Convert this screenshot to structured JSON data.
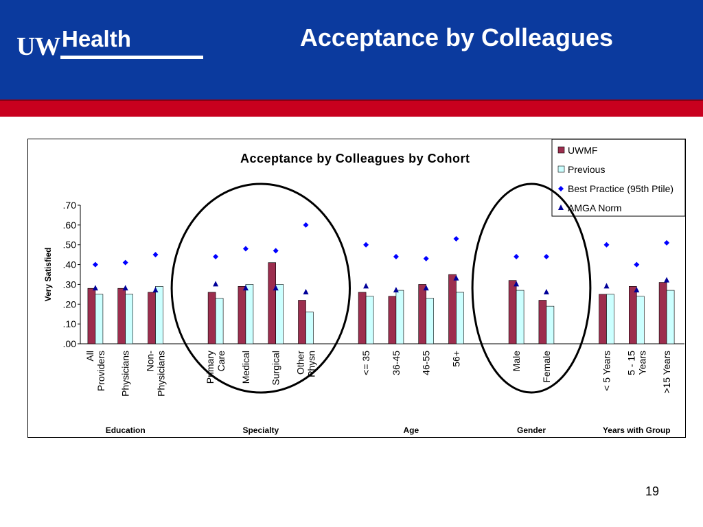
{
  "slide": {
    "title": "Acceptance by Colleagues",
    "page_number": "19",
    "logo_uw": "UW",
    "logo_health": "Health"
  },
  "colors": {
    "header_blue": "#0b3a9e",
    "header_red": "#c8001e",
    "uwmf": "#9c2e4e",
    "previous": "#ccffff",
    "best_practice": "#0000ff",
    "amga_norm": "#000099",
    "highlight_ellipse": "#000000"
  },
  "chart_data": {
    "type": "bar",
    "title": "Acceptance by Colleagues by Cohort",
    "ylabel": "Very Satisfied",
    "ylim": [
      0,
      0.7
    ],
    "yticks": [
      ".00",
      ".10",
      ".20",
      ".30",
      ".40",
      ".50",
      ".60",
      ".70"
    ],
    "legend_position": "top-right",
    "categories": [
      "All Providers",
      "Physicians",
      "Non-Physicians",
      "Primary Care",
      "Medical",
      "Surgical",
      "Other Physn",
      "<= 35",
      "36-45",
      "46-55",
      "56+",
      "Male",
      "Female",
      "< 5 Years",
      "5 - 15 Years",
      ">15 Years"
    ],
    "category_lines": [
      [
        "All",
        "Providers"
      ],
      [
        "Physicians"
      ],
      [
        "Non-",
        "Physicians"
      ],
      [
        "Primary",
        "Care"
      ],
      [
        "Medical"
      ],
      [
        "Surgical"
      ],
      [
        "Other",
        "Physn"
      ],
      [
        "<= 35"
      ],
      [
        "36-45"
      ],
      [
        "46-55"
      ],
      [
        "56+"
      ],
      [
        "Male"
      ],
      [
        "Female"
      ],
      [
        "< 5 Years"
      ],
      [
        "5 - 15",
        "Years"
      ],
      [
        ">15 Years"
      ]
    ],
    "groups": [
      {
        "label": "Education",
        "start": 0,
        "count": 3
      },
      {
        "label": "Specialty",
        "start": 3,
        "count": 4
      },
      {
        "label": "Age",
        "start": 7,
        "count": 4
      },
      {
        "label": "Gender",
        "start": 11,
        "count": 2
      },
      {
        "label": "Years with Group",
        "start": 13,
        "count": 3
      }
    ],
    "series": [
      {
        "name": "UWMF",
        "type": "bar",
        "values": [
          0.28,
          0.28,
          0.26,
          0.26,
          0.29,
          0.41,
          0.22,
          0.26,
          0.24,
          0.3,
          0.35,
          0.32,
          0.22,
          0.25,
          0.29,
          0.31
        ]
      },
      {
        "name": "Previous",
        "type": "bar",
        "values": [
          0.25,
          0.25,
          0.29,
          0.23,
          0.3,
          0.3,
          0.16,
          0.24,
          0.27,
          0.23,
          0.26,
          0.27,
          0.19,
          0.25,
          0.24,
          0.27
        ]
      },
      {
        "name": "Best Practice (95th Ptile)",
        "type": "marker-diamond",
        "values": [
          0.4,
          0.41,
          0.45,
          0.44,
          0.48,
          0.47,
          0.6,
          0.5,
          0.44,
          0.43,
          0.53,
          0.44,
          0.44,
          0.5,
          0.4,
          0.51
        ]
      },
      {
        "name": "AMGA Norm",
        "type": "marker-triangle",
        "values": [
          0.28,
          0.28,
          0.27,
          0.3,
          0.28,
          0.28,
          0.26,
          0.29,
          0.27,
          0.28,
          0.33,
          0.3,
          0.26,
          0.29,
          0.27,
          0.32
        ]
      }
    ],
    "highlighted_groups": [
      "Specialty",
      "Gender"
    ]
  }
}
